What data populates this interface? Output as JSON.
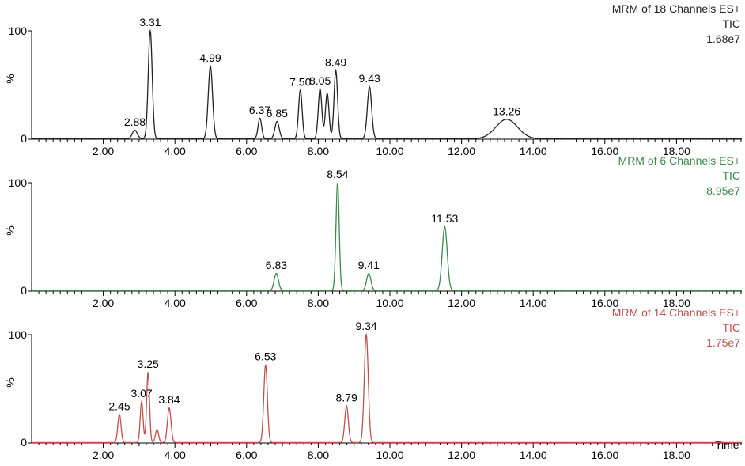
{
  "chart_data": [
    {
      "type": "line",
      "header": [
        "MRM of 18 Channels ES+",
        "TIC",
        "1.68e7"
      ],
      "color": "#222222",
      "ylabel": "%",
      "ytick_labels": [
        "0",
        "100"
      ],
      "xlim": [
        0,
        20
      ],
      "ylim": [
        0,
        100
      ],
      "x_ticks": [
        "2.00",
        "4.00",
        "6.00",
        "8.00",
        "10.00",
        "12.00",
        "14.00",
        "16.00",
        "18.00"
      ],
      "peaks": [
        {
          "rt": 2.88,
          "label": "2.88",
          "height": 8,
          "width": 0.07
        },
        {
          "rt": 3.31,
          "label": "3.31",
          "height": 100,
          "width": 0.055
        },
        {
          "rt": 4.99,
          "label": "4.99",
          "height": 67,
          "width": 0.06
        },
        {
          "rt": 6.37,
          "label": "6.37",
          "height": 19,
          "width": 0.05
        },
        {
          "rt": 6.85,
          "label": "6.85",
          "height": 16,
          "width": 0.06
        },
        {
          "rt": 7.5,
          "label": "7.50",
          "height": 45,
          "width": 0.05
        },
        {
          "rt": 8.05,
          "label": "8.05",
          "height": 46,
          "width": 0.05
        },
        {
          "rt": 8.25,
          "label": "",
          "height": 42,
          "width": 0.05
        },
        {
          "rt": 8.49,
          "label": "8.49",
          "height": 63,
          "width": 0.05
        },
        {
          "rt": 9.43,
          "label": "9.43",
          "height": 48,
          "width": 0.06
        },
        {
          "rt": 13.26,
          "label": "13.26",
          "height": 18,
          "width": 0.3
        }
      ]
    },
    {
      "type": "line",
      "header": [
        "MRM of 6 Channels ES+",
        "TIC",
        "8.95e7"
      ],
      "color": "#3a8a4a",
      "ylabel": "%",
      "ytick_labels": [
        "0",
        "100"
      ],
      "xlim": [
        0,
        20
      ],
      "ylim": [
        0,
        100
      ],
      "x_ticks": [
        "2.00",
        "4.00",
        "6.00",
        "8.00",
        "10.00",
        "12.00",
        "14.00",
        "16.00",
        "18.00"
      ],
      "peaks": [
        {
          "rt": 6.83,
          "label": "6.83",
          "height": 16,
          "width": 0.06
        },
        {
          "rt": 8.54,
          "label": "8.54",
          "height": 100,
          "width": 0.045
        },
        {
          "rt": 9.41,
          "label": "9.41",
          "height": 16,
          "width": 0.06
        },
        {
          "rt": 11.53,
          "label": "11.53",
          "height": 59,
          "width": 0.07
        }
      ]
    },
    {
      "type": "line",
      "header": [
        "MRM of 14 Channels ES+",
        "TIC",
        "1.75e7"
      ],
      "color": "#c0504d",
      "ylabel": "%",
      "ytick_labels": [
        "0",
        "100"
      ],
      "xlim": [
        0,
        20
      ],
      "ylim": [
        0,
        100
      ],
      "xlabel": "Time",
      "x_ticks": [
        "2.00",
        "4.00",
        "6.00",
        "8.00",
        "10.00",
        "12.00",
        "14.00",
        "16.00",
        "18.00"
      ],
      "peaks": [
        {
          "rt": 2.45,
          "label": "2.45",
          "height": 26,
          "width": 0.045
        },
        {
          "rt": 3.07,
          "label": "3.07",
          "height": 38,
          "width": 0.04
        },
        {
          "rt": 3.25,
          "label": "3.25",
          "height": 65,
          "width": 0.04
        },
        {
          "rt": 3.5,
          "label": "",
          "height": 12,
          "width": 0.045
        },
        {
          "rt": 3.84,
          "label": "3.84",
          "height": 32,
          "width": 0.05
        },
        {
          "rt": 6.53,
          "label": "6.53",
          "height": 72,
          "width": 0.05
        },
        {
          "rt": 8.79,
          "label": "8.79",
          "height": 34,
          "width": 0.05
        },
        {
          "rt": 9.34,
          "label": "9.34",
          "height": 100,
          "width": 0.055
        }
      ]
    }
  ]
}
